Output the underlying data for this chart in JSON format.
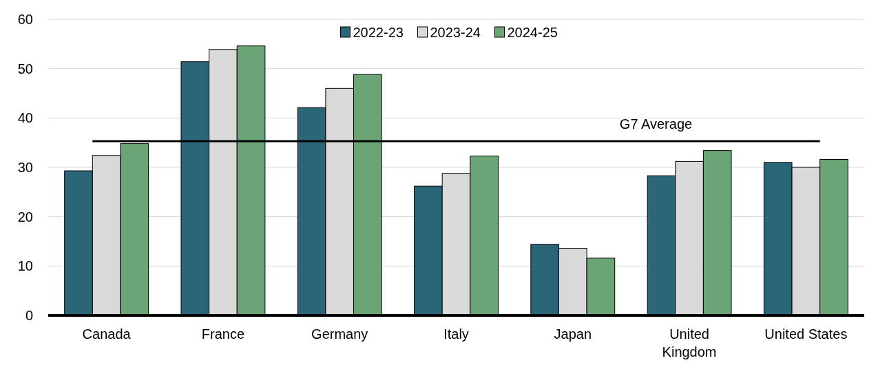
{
  "chart_data": {
    "type": "bar",
    "categories": [
      "Canada",
      "France",
      "Germany",
      "Italy",
      "Japan",
      "United Kingdom",
      "United States"
    ],
    "series": [
      {
        "name": "2022-23",
        "color": "#2a6678",
        "values": [
          29.3,
          51.4,
          42.1,
          26.2,
          14.4,
          28.3,
          31.0
        ]
      },
      {
        "name": "2023-24",
        "color": "#d9d9d9",
        "values": [
          32.4,
          53.9,
          46.0,
          28.8,
          13.6,
          31.2,
          30.0
        ]
      },
      {
        "name": "2024-25",
        "color": "#6ca575",
        "values": [
          34.8,
          54.6,
          48.8,
          32.3,
          11.6,
          33.4,
          31.6
        ]
      }
    ],
    "ylim": [
      0,
      60
    ],
    "yticks": [
      0,
      10,
      20,
      30,
      40,
      50,
      60
    ],
    "grid": "y",
    "legend": "top",
    "ref_lines": [
      {
        "axis": "y",
        "value": 35.3,
        "label": "G7 Average",
        "color": "#000000"
      }
    ]
  }
}
